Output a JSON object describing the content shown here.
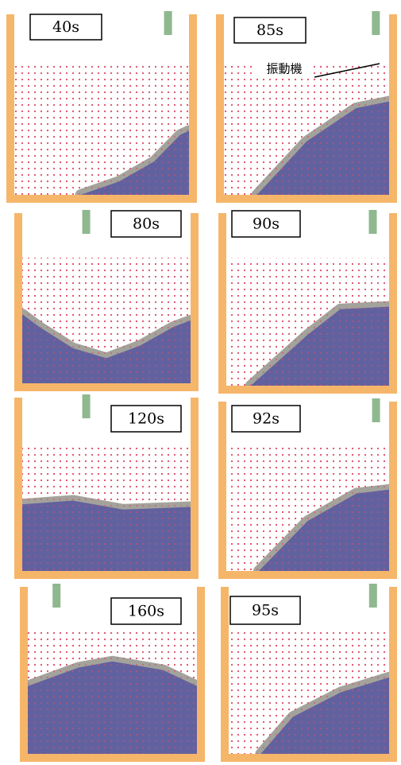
{
  "panels": [
    {
      "label": "40s"
    },
    {
      "label": "85s"
    },
    {
      "label": "80s"
    },
    {
      "label": "90s"
    },
    {
      "label": "120s"
    },
    {
      "label": "92s"
    },
    {
      "label": "160s"
    },
    {
      "label": "95s"
    }
  ],
  "annotation": "振動機"
}
